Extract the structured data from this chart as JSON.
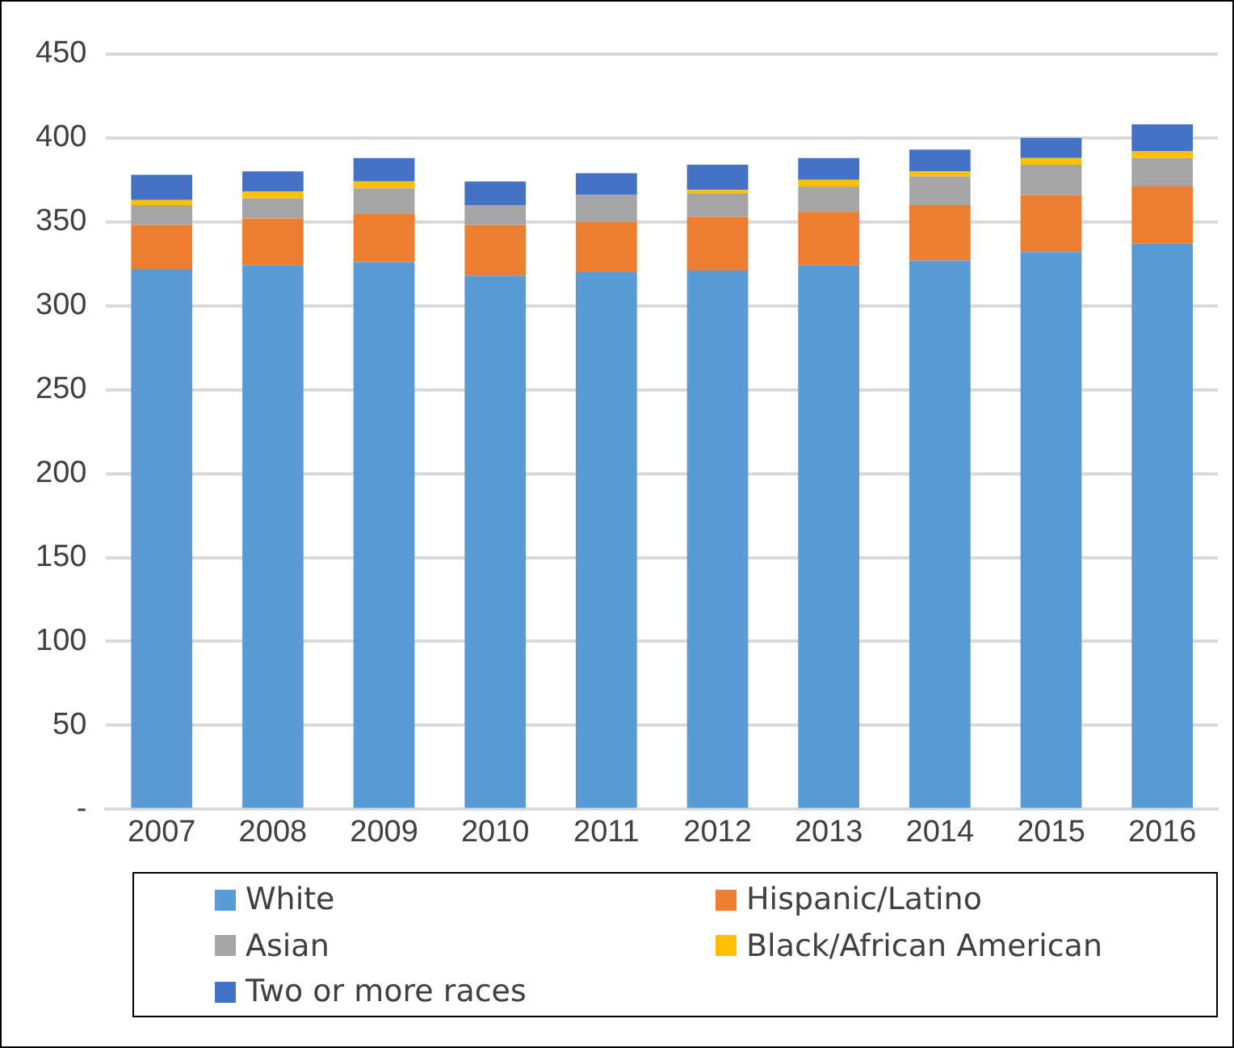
{
  "chart_data": {
    "type": "bar",
    "stacked": true,
    "categories": [
      "2007",
      "2008",
      "2009",
      "2010",
      "2011",
      "2012",
      "2013",
      "2014",
      "2015",
      "2016"
    ],
    "series": [
      {
        "name": "White",
        "color": "#5b9bd5",
        "values": [
          322,
          324,
          326,
          318,
          320,
          321,
          324,
          327,
          332,
          337
        ]
      },
      {
        "name": "Hispanic/Latino",
        "color": "#ed7d31",
        "values": [
          26,
          28,
          29,
          30,
          30,
          32,
          32,
          33,
          34,
          34
        ]
      },
      {
        "name": "Asian",
        "color": "#a5a5a5",
        "values": [
          12,
          12,
          15,
          12,
          16,
          14,
          15,
          17,
          18,
          17
        ]
      },
      {
        "name": "Black/African American",
        "color": "#ffc000",
        "values": [
          3,
          4,
          4,
          0,
          0,
          2,
          4,
          3,
          4,
          4
        ]
      },
      {
        "name": "Two or more races",
        "color": "#4472c4",
        "values": [
          15,
          12,
          14,
          14,
          13,
          15,
          13,
          13,
          12,
          16
        ]
      }
    ],
    "ylim": [
      0,
      450
    ],
    "yticks": [
      {
        "value": 0,
        "label": "-"
      },
      50,
      100,
      150,
      200,
      250,
      300,
      350,
      400,
      450
    ],
    "grid": "y",
    "legend": "bottom"
  }
}
